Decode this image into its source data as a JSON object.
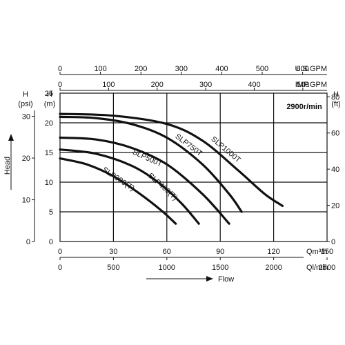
{
  "chart_data": {
    "type": "line",
    "speed_note": "2900r/min",
    "x_axes": {
      "bottom_primary": {
        "unit": "Qm³/h",
        "range": [
          0,
          150
        ],
        "ticks": [
          "0",
          "30",
          "60",
          "90",
          "120",
          "150"
        ]
      },
      "bottom_secondary": {
        "unit": "Ql/min",
        "range": [
          0,
          2500
        ],
        "ticks": [
          "0",
          "500",
          "1000",
          "1500",
          "2000",
          "2500"
        ]
      },
      "top_us": {
        "unit": "U.S.GPM",
        "ticks": [
          "0",
          "100",
          "200",
          "300",
          "400",
          "500",
          "600"
        ],
        "values": [
          0,
          100,
          200,
          300,
          400,
          500,
          600
        ]
      },
      "top_imp": {
        "unit": "IMP.GPM",
        "ticks": [
          "0",
          "100",
          "200",
          "300",
          "400",
          "500"
        ],
        "values": [
          0,
          100,
          200,
          300,
          400,
          500
        ]
      }
    },
    "y_axes": {
      "meters": {
        "header": "H",
        "unit": "(m)",
        "range": [
          0,
          25
        ],
        "ticks": [
          "0",
          "5",
          "10",
          "15",
          "20",
          "25"
        ]
      },
      "psi": {
        "header": "H",
        "unit": "(psi)",
        "ticks": [
          "0",
          "10",
          "20",
          "30"
        ],
        "values": [
          0,
          10,
          20,
          30
        ]
      },
      "feet": {
        "header": "H",
        "unit": "(ft)",
        "ticks": [
          "0",
          "20",
          "40",
          "60",
          "80"
        ],
        "values": [
          0,
          20,
          40,
          60,
          80
        ]
      }
    },
    "ylabel": "Head",
    "xlabel": "Flow",
    "grid": true,
    "series": [
      {
        "name": "SLP300(T)",
        "x": [
          0,
          15,
          30,
          45,
          57,
          65
        ],
        "y": [
          14,
          13,
          11,
          8,
          5.2,
          3
        ]
      },
      {
        "name": "SLP400(T)",
        "x": [
          0,
          20,
          40,
          55,
          68,
          78
        ],
        "y": [
          15.5,
          14.8,
          12.8,
          10,
          6.5,
          3
        ]
      },
      {
        "name": "SLP500T",
        "x": [
          0,
          20,
          40,
          60,
          80,
          95
        ],
        "y": [
          17.5,
          17.2,
          15.8,
          13,
          8,
          3
        ]
      },
      {
        "name": "SLP750T",
        "x": [
          0,
          20,
          40,
          60,
          80,
          95,
          102
        ],
        "y": [
          21,
          20.8,
          19.8,
          17.5,
          13,
          8,
          5
        ]
      },
      {
        "name": "SLP1000T",
        "x": [
          0,
          30,
          60,
          80,
          100,
          115,
          125
        ],
        "y": [
          21.5,
          21.2,
          19.8,
          17,
          12,
          8,
          6
        ]
      }
    ]
  }
}
